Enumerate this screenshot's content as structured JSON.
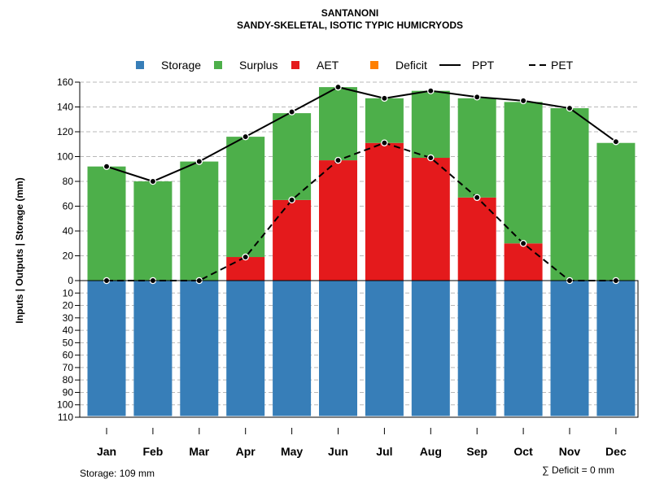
{
  "chart_data": {
    "type": "bar",
    "title": "SANTANONI",
    "subtitle": "SANDY-SKELETAL, ISOTIC TYPIC HUMICRYODS",
    "ylabel": "Inputs | Outputs | Storage    (mm)",
    "categories": [
      "Jan",
      "Feb",
      "Mar",
      "Apr",
      "May",
      "Jun",
      "Jul",
      "Aug",
      "Sep",
      "Oct",
      "Nov",
      "Dec"
    ],
    "ylim_upper": [
      0,
      160
    ],
    "ylim_lower": [
      0,
      110
    ],
    "yticks_upper": [
      "160",
      "140",
      "120",
      "100",
      "80",
      "60",
      "40",
      "20",
      "0"
    ],
    "yticks_upper_values": [
      160,
      140,
      120,
      100,
      80,
      60,
      40,
      20,
      0
    ],
    "yticks_lower": [
      "10",
      "20",
      "30",
      "40",
      "50",
      "60",
      "70",
      "80",
      "90",
      "100",
      "110"
    ],
    "yticks_lower_values": [
      10,
      20,
      30,
      40,
      50,
      60,
      70,
      80,
      90,
      100,
      110
    ],
    "legend": [
      {
        "label": "Storage",
        "kind": "box",
        "color": "#377eb8"
      },
      {
        "label": "Surplus",
        "kind": "box",
        "color": "#4daf4a"
      },
      {
        "label": "AET",
        "kind": "box",
        "color": "#e41a1c"
      },
      {
        "label": "Deficit",
        "kind": "box",
        "color": "#ff7f00"
      },
      {
        "label": "PPT",
        "kind": "solid",
        "color": "#000000"
      },
      {
        "label": "PET",
        "kind": "dashed",
        "color": "#000000"
      }
    ],
    "series": [
      {
        "name": "AET",
        "color": "#e41a1c",
        "values": [
          0,
          0,
          0,
          19,
          65,
          97,
          111,
          99,
          67,
          30,
          0,
          0
        ]
      },
      {
        "name": "Surplus",
        "color": "#4daf4a",
        "values": [
          92,
          80,
          96,
          97,
          70,
          59,
          36,
          54,
          80,
          114,
          139,
          111
        ]
      },
      {
        "name": "Deficit",
        "color": "#ff7f00",
        "values": [
          0,
          0,
          0,
          0,
          0,
          0,
          0,
          0,
          0,
          0,
          0,
          0
        ]
      },
      {
        "name": "Storage",
        "color": "#377eb8",
        "values": [
          109,
          109,
          109,
          109,
          109,
          109,
          109,
          109,
          109,
          109,
          109,
          109
        ]
      },
      {
        "name": "PPT",
        "color": "#000000",
        "values": [
          92,
          80,
          96,
          116,
          136,
          156,
          147,
          153,
          148,
          145,
          139,
          112
        ]
      },
      {
        "name": "PET",
        "color": "#000000",
        "values": [
          0,
          0,
          0,
          19,
          65,
          97,
          111,
          99,
          67,
          30,
          0,
          0
        ]
      }
    ],
    "footnote_left": "Storage: 109 mm",
    "footnote_right": "∑ Deficit = 0 mm"
  }
}
